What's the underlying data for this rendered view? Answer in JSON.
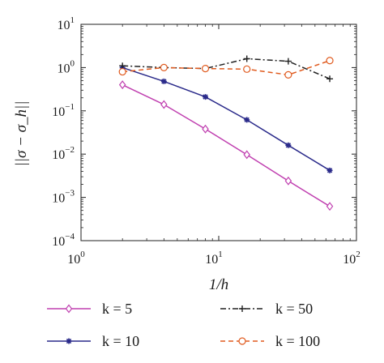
{
  "chart_data": {
    "type": "line",
    "title": "",
    "xlabel": "1/h",
    "ylabel": "||σ − σ_h||",
    "xscale": "log",
    "yscale": "log",
    "xlim": [
      1,
      100
    ],
    "ylim": [
      0.0001,
      10
    ],
    "x_ticks": [
      {
        "value": 1,
        "base": "10",
        "exp": "0"
      },
      {
        "value": 10,
        "base": "10",
        "exp": "1"
      },
      {
        "value": 100,
        "base": "10",
        "exp": "2"
      }
    ],
    "y_ticks": [
      {
        "value": 0.0001,
        "base": "10",
        "exp": "−4"
      },
      {
        "value": 0.001,
        "base": "10",
        "exp": "−3"
      },
      {
        "value": 0.01,
        "base": "10",
        "exp": "−2"
      },
      {
        "value": 0.1,
        "base": "10",
        "exp": "−1"
      },
      {
        "value": 1,
        "base": "10",
        "exp": "0"
      },
      {
        "value": 10,
        "base": "10",
        "exp": "1"
      }
    ],
    "grid": false,
    "legend_position": "bottom",
    "x": [
      2,
      4,
      8,
      16,
      32,
      64
    ],
    "series": [
      {
        "name": "k = 5",
        "values": [
          0.4,
          0.14,
          0.038,
          0.0097,
          0.0024,
          0.00062
        ],
        "color": "#c040b0",
        "linestyle": "solid",
        "marker": "diamond"
      },
      {
        "name": "k = 10",
        "values": [
          1.0,
          0.48,
          0.21,
          0.062,
          0.016,
          0.0042
        ],
        "color": "#2a2a8a",
        "linestyle": "solid",
        "marker": "star"
      },
      {
        "name": "k = 50",
        "values": [
          1.1,
          1.0,
          0.95,
          1.6,
          1.4,
          0.55
        ],
        "color": "#222222",
        "linestyle": "dashdot",
        "marker": "plus"
      },
      {
        "name": "k = 100",
        "values": [
          0.8,
          1.0,
          0.95,
          0.92,
          0.68,
          1.45
        ],
        "color": "#e05a1e",
        "linestyle": "dashed",
        "marker": "circle"
      }
    ]
  }
}
